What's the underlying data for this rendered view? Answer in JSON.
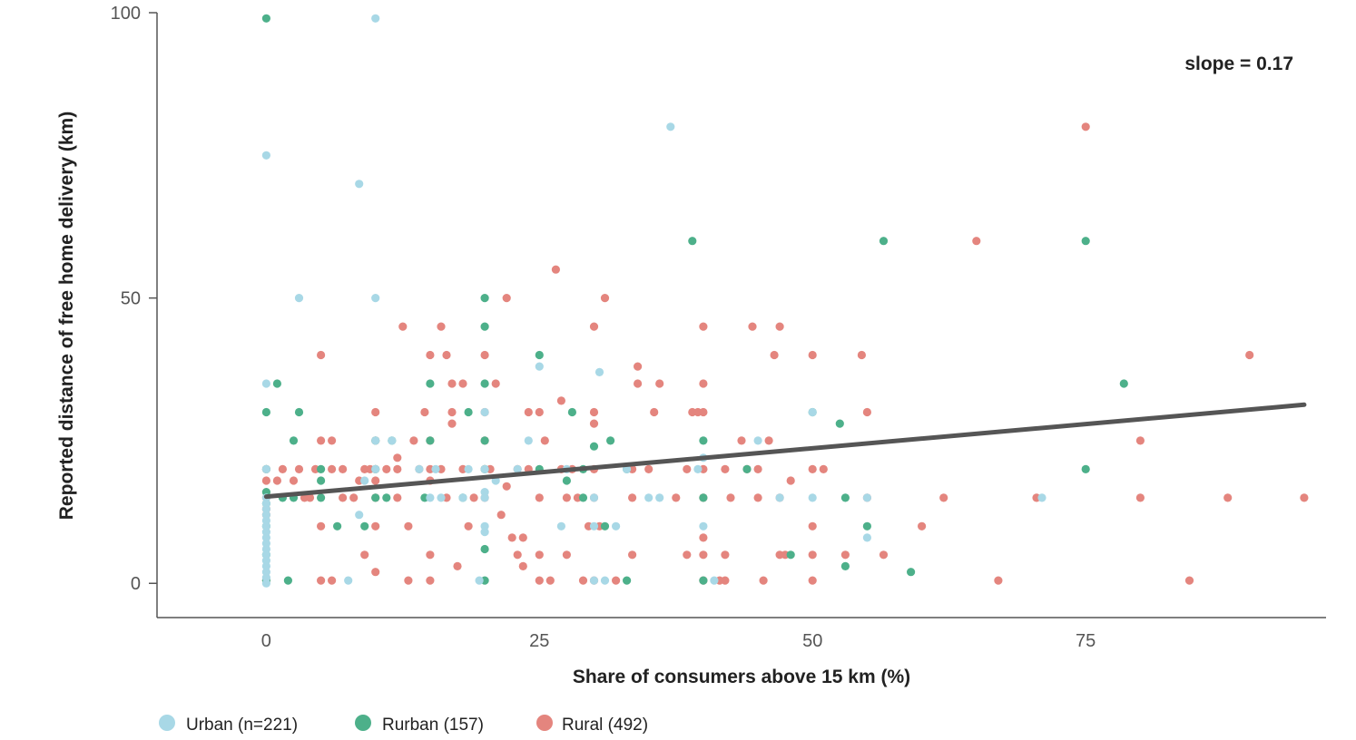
{
  "chart_data": {
    "type": "scatter",
    "xlabel": "Share of consumers above 15 km (%)",
    "ylabel": "Reported distance of free home delivery (km)",
    "xlim": [
      -10,
      97
    ],
    "ylim": [
      -6,
      100
    ],
    "x_ticks": [
      0,
      25,
      50,
      75
    ],
    "y_ticks": [
      0,
      50,
      100
    ],
    "grid": false,
    "legend_position": "bottom-left",
    "annotations": [
      {
        "text": "slope = 0.17"
      }
    ],
    "trendline": {
      "x": [
        0,
        95
      ],
      "y": [
        15.2,
        31.3
      ],
      "color": "#555555"
    },
    "series": [
      {
        "name": "Urban (n=221)",
        "color": "#a8d8e6",
        "points": [
          [
            0,
            0
          ],
          [
            0,
            1
          ],
          [
            0,
            2
          ],
          [
            0,
            3
          ],
          [
            0,
            4
          ],
          [
            0,
            5
          ],
          [
            0,
            6
          ],
          [
            0,
            7
          ],
          [
            0,
            8
          ],
          [
            0,
            9
          ],
          [
            0,
            10
          ],
          [
            0,
            11
          ],
          [
            0,
            12
          ],
          [
            0,
            13
          ],
          [
            0,
            14
          ],
          [
            0,
            15
          ],
          [
            0,
            20
          ],
          [
            0,
            35
          ],
          [
            0,
            75
          ],
          [
            3,
            50
          ],
          [
            7.5,
            0.5
          ],
          [
            8.5,
            12
          ],
          [
            9,
            18
          ],
          [
            8.5,
            70
          ],
          [
            10,
            50
          ],
          [
            10,
            99
          ],
          [
            10,
            20
          ],
          [
            10,
            25
          ],
          [
            11.5,
            25
          ],
          [
            14,
            20
          ],
          [
            15,
            15
          ],
          [
            15.5,
            20
          ],
          [
            16,
            15
          ],
          [
            18,
            15
          ],
          [
            18.5,
            20
          ],
          [
            19.5,
            0.5
          ],
          [
            20,
            30
          ],
          [
            20,
            15
          ],
          [
            20,
            16
          ],
          [
            20,
            10
          ],
          [
            20,
            9
          ],
          [
            20,
            20
          ],
          [
            21,
            18
          ],
          [
            23,
            20
          ],
          [
            24,
            25
          ],
          [
            25,
            38
          ],
          [
            27,
            10
          ],
          [
            27.5,
            20
          ],
          [
            30.5,
            37
          ],
          [
            30,
            0.5
          ],
          [
            30,
            15
          ],
          [
            30,
            10
          ],
          [
            31,
            0.5
          ],
          [
            32,
            10
          ],
          [
            33,
            20
          ],
          [
            35,
            15
          ],
          [
            36,
            15
          ],
          [
            37,
            80
          ],
          [
            39.5,
            20
          ],
          [
            40,
            22
          ],
          [
            40,
            10
          ],
          [
            41,
            0.5
          ],
          [
            45,
            25
          ],
          [
            47,
            15
          ],
          [
            50,
            30
          ],
          [
            50,
            15
          ],
          [
            55,
            15
          ],
          [
            55,
            8
          ],
          [
            71,
            15
          ]
        ]
      },
      {
        "name": "Rurban (157)",
        "color": "#4db08a",
        "points": [
          [
            0,
            99
          ],
          [
            0,
            30
          ],
          [
            0,
            20
          ],
          [
            0,
            16
          ],
          [
            0,
            14
          ],
          [
            0,
            10
          ],
          [
            0,
            5
          ],
          [
            0,
            0.5
          ],
          [
            1,
            35
          ],
          [
            1.5,
            15
          ],
          [
            2,
            0.5
          ],
          [
            2.5,
            15
          ],
          [
            3,
            30
          ],
          [
            2.5,
            25
          ],
          [
            5,
            20
          ],
          [
            5,
            18
          ],
          [
            5,
            15
          ],
          [
            6.5,
            10
          ],
          [
            9,
            10
          ],
          [
            10,
            25
          ],
          [
            10,
            15
          ],
          [
            10,
            20
          ],
          [
            11,
            15
          ],
          [
            11.5,
            25
          ],
          [
            14.5,
            15
          ],
          [
            15,
            25
          ],
          [
            15,
            35
          ],
          [
            18,
            15
          ],
          [
            18.5,
            30
          ],
          [
            20,
            50
          ],
          [
            20,
            45
          ],
          [
            20,
            35
          ],
          [
            20,
            25
          ],
          [
            20,
            20
          ],
          [
            20,
            6
          ],
          [
            20,
            0.5
          ],
          [
            25,
            40
          ],
          [
            25,
            20
          ],
          [
            27.5,
            18
          ],
          [
            28,
            30
          ],
          [
            29,
            15
          ],
          [
            29,
            20
          ],
          [
            30,
            24
          ],
          [
            31,
            10
          ],
          [
            31.5,
            25
          ],
          [
            33,
            20
          ],
          [
            39,
            60
          ],
          [
            40,
            25
          ],
          [
            40,
            15
          ],
          [
            40,
            0.5
          ],
          [
            44,
            20
          ],
          [
            48,
            5
          ],
          [
            50,
            30
          ],
          [
            52.5,
            28
          ],
          [
            53,
            15
          ],
          [
            53,
            3
          ],
          [
            55,
            10
          ],
          [
            56.5,
            60
          ],
          [
            59,
            2
          ],
          [
            75,
            60
          ],
          [
            75,
            20
          ],
          [
            78.5,
            35
          ],
          [
            33,
            0.5
          ]
        ]
      },
      {
        "name": "Rural (492)",
        "color": "#e4857e",
        "points": [
          [
            0,
            20
          ],
          [
            0,
            18
          ],
          [
            0,
            15
          ],
          [
            0,
            13
          ],
          [
            0,
            12
          ],
          [
            0,
            0.5
          ],
          [
            1,
            18
          ],
          [
            1.5,
            20
          ],
          [
            2.5,
            18
          ],
          [
            3,
            20
          ],
          [
            3.5,
            15
          ],
          [
            4,
            15
          ],
          [
            4.5,
            20
          ],
          [
            5,
            40
          ],
          [
            5,
            25
          ],
          [
            5,
            10
          ],
          [
            5,
            0.5
          ],
          [
            6,
            25
          ],
          [
            6,
            20
          ],
          [
            6,
            0.5
          ],
          [
            7,
            20
          ],
          [
            7,
            15
          ],
          [
            8,
            15
          ],
          [
            8.5,
            18
          ],
          [
            9,
            20
          ],
          [
            9,
            5
          ],
          [
            9.5,
            20
          ],
          [
            10,
            30
          ],
          [
            10,
            25
          ],
          [
            10,
            20
          ],
          [
            10,
            18
          ],
          [
            10,
            15
          ],
          [
            10,
            10
          ],
          [
            10,
            2
          ],
          [
            11,
            20
          ],
          [
            12,
            22
          ],
          [
            12,
            20
          ],
          [
            12,
            15
          ],
          [
            12.5,
            45
          ],
          [
            13,
            10
          ],
          [
            13,
            0.5
          ],
          [
            13.5,
            25
          ],
          [
            14,
            20
          ],
          [
            14.5,
            30
          ],
          [
            15,
            40
          ],
          [
            15,
            25
          ],
          [
            15,
            20
          ],
          [
            15,
            18
          ],
          [
            15,
            5
          ],
          [
            15,
            0.5
          ],
          [
            16,
            45
          ],
          [
            16,
            20
          ],
          [
            16.5,
            40
          ],
          [
            16.5,
            15
          ],
          [
            17,
            35
          ],
          [
            17,
            28
          ],
          [
            17,
            30
          ],
          [
            17.5,
            3
          ],
          [
            18,
            35
          ],
          [
            18,
            20
          ],
          [
            18.5,
            10
          ],
          [
            19,
            15
          ],
          [
            20,
            40
          ],
          [
            20,
            30
          ],
          [
            20,
            25
          ],
          [
            20,
            20
          ],
          [
            20,
            15
          ],
          [
            20.5,
            20
          ],
          [
            21,
            35
          ],
          [
            21.5,
            12
          ],
          [
            22,
            50
          ],
          [
            22,
            17
          ],
          [
            22.5,
            8
          ],
          [
            23,
            20
          ],
          [
            23,
            5
          ],
          [
            23.5,
            3
          ],
          [
            23.5,
            8
          ],
          [
            24,
            30
          ],
          [
            24,
            20
          ],
          [
            25,
            30
          ],
          [
            25,
            15
          ],
          [
            25,
            5
          ],
          [
            25,
            0.5
          ],
          [
            25.5,
            25
          ],
          [
            26,
            0.5
          ],
          [
            26.5,
            55
          ],
          [
            27,
            32
          ],
          [
            27,
            20
          ],
          [
            27.5,
            15
          ],
          [
            27.5,
            5
          ],
          [
            28,
            20
          ],
          [
            28.5,
            15
          ],
          [
            29,
            0.5
          ],
          [
            29.5,
            10
          ],
          [
            30,
            45
          ],
          [
            30,
            30
          ],
          [
            30,
            28
          ],
          [
            30,
            20
          ],
          [
            30,
            15
          ],
          [
            30,
            0.5
          ],
          [
            30.5,
            10
          ],
          [
            31,
            50
          ],
          [
            32,
            0.5
          ],
          [
            33.5,
            20
          ],
          [
            33.5,
            15
          ],
          [
            33.5,
            5
          ],
          [
            34,
            38
          ],
          [
            34,
            35
          ],
          [
            35,
            20
          ],
          [
            35.5,
            30
          ],
          [
            36,
            35
          ],
          [
            37.5,
            15
          ],
          [
            38.5,
            20
          ],
          [
            38.5,
            5
          ],
          [
            39,
            30
          ],
          [
            39.5,
            30
          ],
          [
            40,
            45
          ],
          [
            40,
            35
          ],
          [
            40,
            30
          ],
          [
            40,
            20
          ],
          [
            40,
            15
          ],
          [
            40,
            8
          ],
          [
            40,
            5
          ],
          [
            40,
            0.5
          ],
          [
            41.5,
            0.5
          ],
          [
            42,
            5
          ],
          [
            42,
            0.5
          ],
          [
            42,
            20
          ],
          [
            42.5,
            15
          ],
          [
            43.5,
            25
          ],
          [
            44,
            20
          ],
          [
            44.5,
            45
          ],
          [
            45,
            20
          ],
          [
            45,
            15
          ],
          [
            45.5,
            0.5
          ],
          [
            46,
            25
          ],
          [
            46.5,
            40
          ],
          [
            47,
            45
          ],
          [
            47,
            15
          ],
          [
            47,
            5
          ],
          [
            47.5,
            5
          ],
          [
            48,
            18
          ],
          [
            50,
            40
          ],
          [
            50,
            20
          ],
          [
            50,
            10
          ],
          [
            50,
            5
          ],
          [
            50,
            0.5
          ],
          [
            51,
            20
          ],
          [
            53,
            5
          ],
          [
            54.5,
            40
          ],
          [
            55,
            30
          ],
          [
            55,
            15
          ],
          [
            56.5,
            5
          ],
          [
            60,
            10
          ],
          [
            62,
            15
          ],
          [
            65,
            60
          ],
          [
            67,
            0.5
          ],
          [
            70.5,
            15
          ],
          [
            75,
            80
          ],
          [
            80,
            25
          ],
          [
            80,
            15
          ],
          [
            84.5,
            0.5
          ],
          [
            88,
            15
          ],
          [
            90,
            40
          ],
          [
            95,
            15
          ]
        ]
      }
    ]
  }
}
